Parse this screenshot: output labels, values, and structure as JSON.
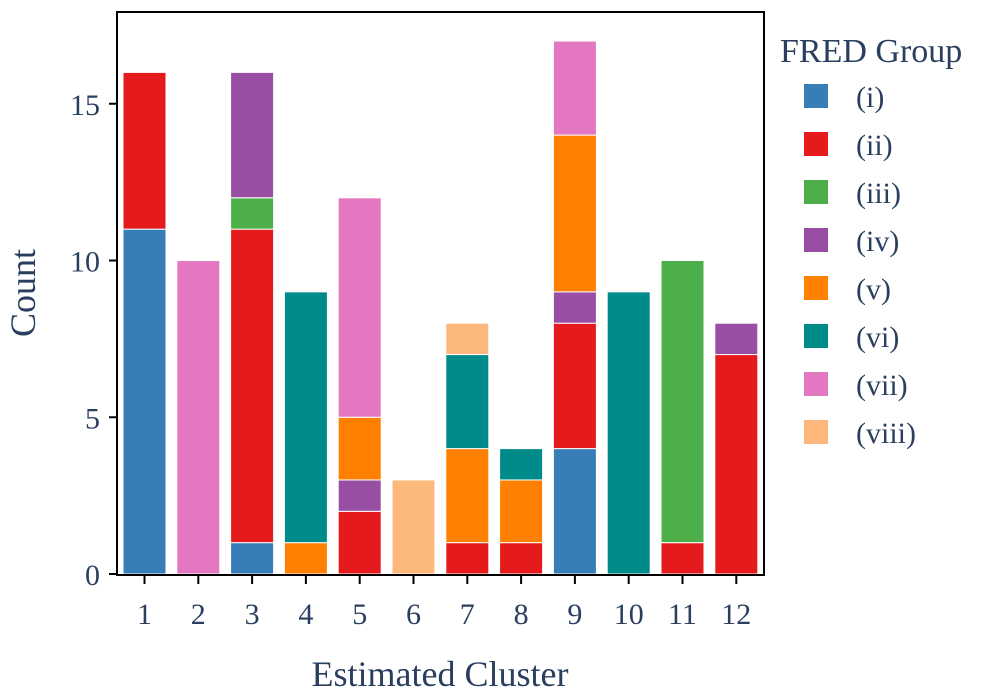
{
  "chart_data": {
    "type": "bar",
    "stacked": true,
    "title": "",
    "xlabel": "Estimated Cluster",
    "ylabel": "Count",
    "ylim": [
      0,
      18
    ],
    "yticks": [
      0,
      5,
      10,
      15
    ],
    "categories": [
      "1",
      "2",
      "3",
      "4",
      "5",
      "6",
      "7",
      "8",
      "9",
      "10",
      "11",
      "12"
    ],
    "legend_title": "FRED Group",
    "legend_position": "right",
    "series": [
      {
        "name": "(i)",
        "color": "#377eb8",
        "values": [
          11,
          0,
          1,
          0,
          0,
          0,
          0,
          0,
          4,
          0,
          0,
          0
        ]
      },
      {
        "name": "(ii)",
        "color": "#e41a1c",
        "values": [
          5,
          0,
          10,
          0,
          2,
          0,
          1,
          1,
          4,
          0,
          1,
          7
        ]
      },
      {
        "name": "(iii)",
        "color": "#4daf4a",
        "values": [
          0,
          0,
          1,
          0,
          0,
          0,
          0,
          0,
          0,
          0,
          9,
          0
        ]
      },
      {
        "name": "(iv)",
        "color": "#984ea3",
        "values": [
          0,
          0,
          4,
          0,
          1,
          0,
          0,
          0,
          1,
          0,
          0,
          1
        ]
      },
      {
        "name": "(v)",
        "color": "#ff7f00",
        "values": [
          0,
          0,
          0,
          1,
          2,
          0,
          3,
          2,
          5,
          0,
          0,
          0
        ]
      },
      {
        "name": "(vi)",
        "color": "#008b8b",
        "values": [
          0,
          0,
          0,
          8,
          0,
          0,
          3,
          1,
          0,
          9,
          0,
          0
        ]
      },
      {
        "name": "(vii)",
        "color": "#e377c2",
        "values": [
          0,
          10,
          0,
          0,
          7,
          0,
          0,
          0,
          3,
          0,
          0,
          0
        ]
      },
      {
        "name": "(viii)",
        "color": "#fdb87c",
        "values": [
          0,
          0,
          0,
          0,
          0,
          3,
          1,
          0,
          0,
          0,
          0,
          0
        ]
      }
    ]
  }
}
